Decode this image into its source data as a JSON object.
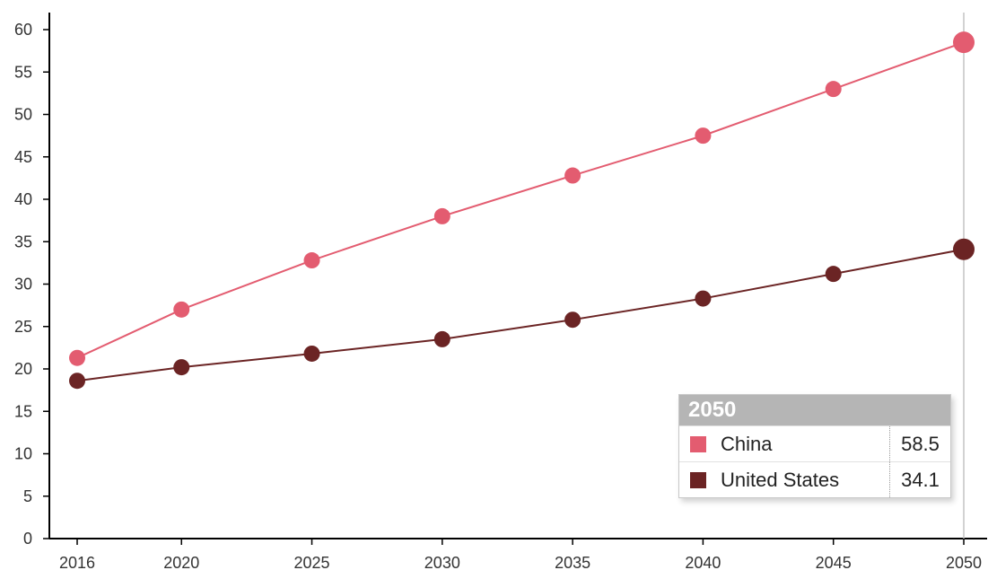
{
  "chart_data": {
    "type": "line",
    "title": "",
    "xlabel": "",
    "ylabel": "",
    "x": [
      "2016",
      "2020",
      "2025",
      "2030",
      "2035",
      "2040",
      "2045",
      "2050"
    ],
    "y_ticks": [
      "0",
      "5",
      "10",
      "15",
      "20",
      "25",
      "30",
      "35",
      "40",
      "45",
      "50",
      "55",
      "60"
    ],
    "ylim": [
      0,
      60
    ],
    "grid": false,
    "series": [
      {
        "name": "China",
        "color": "#e35c70",
        "values": [
          21.3,
          27.0,
          32.8,
          38.0,
          42.8,
          47.5,
          53.0,
          58.5
        ]
      },
      {
        "name": "United States",
        "color": "#6b2424",
        "values": [
          18.6,
          20.2,
          21.8,
          23.5,
          25.8,
          28.3,
          31.2,
          34.1
        ]
      }
    ],
    "highlight_x": "2050"
  },
  "tooltip": {
    "title": "2050",
    "rows": [
      {
        "name": "China",
        "value": "58.5",
        "color": "#e35c70"
      },
      {
        "name": "United States",
        "value": "34.1",
        "color": "#6b2424"
      }
    ]
  }
}
